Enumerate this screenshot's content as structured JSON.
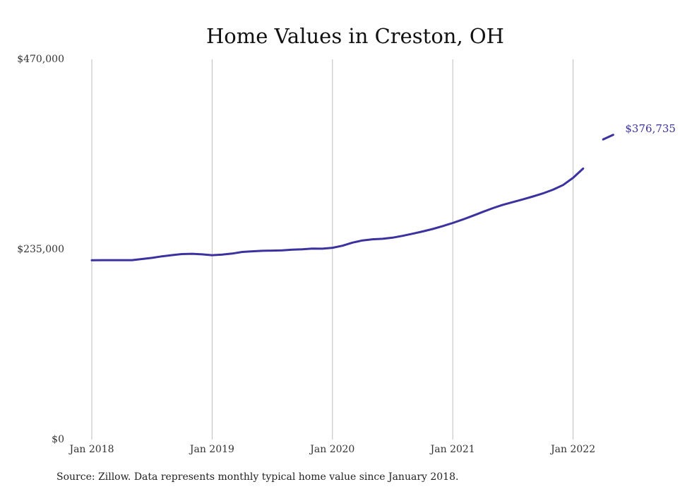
{
  "chart_data": {
    "type": "line",
    "title": "Home Values in Creston, OH",
    "xlabel": "",
    "ylabel": "",
    "ylim": [
      0,
      470000
    ],
    "y_ticks": [
      {
        "value": 0,
        "label": "$0"
      },
      {
        "value": 235000,
        "label": "$235,000"
      },
      {
        "value": 470000,
        "label": "$470,000"
      }
    ],
    "x_ticks": [
      {
        "value": 0,
        "label": "Jan 2018"
      },
      {
        "value": 12,
        "label": "Jan 2019"
      },
      {
        "value": 24,
        "label": "Jan 2020"
      },
      {
        "value": 36,
        "label": "Jan 2021"
      },
      {
        "value": 48,
        "label": "Jan 2022"
      }
    ],
    "x_unit": "months since Jan 2018",
    "xlim": [
      0,
      52.5
    ],
    "grid": {
      "vertical": true,
      "horizontal": false
    },
    "line_color": "#3b32a0",
    "series": [
      {
        "name": "",
        "x": [
          0,
          1,
          2,
          3,
          4,
          5,
          6,
          7,
          8,
          9,
          10,
          11,
          12,
          13,
          14,
          15,
          16,
          17,
          18,
          19,
          20,
          21,
          22,
          23,
          24,
          25,
          26,
          27,
          28,
          29,
          30,
          31,
          32,
          33,
          34,
          35,
          36,
          37,
          38,
          39,
          40,
          41,
          42,
          43,
          44,
          45,
          46,
          47,
          48,
          49
        ],
        "values": [
          221600,
          221800,
          221800,
          221800,
          221800,
          223200,
          224600,
          226500,
          228000,
          229300,
          229700,
          229000,
          227900,
          228700,
          229900,
          231900,
          232700,
          233300,
          233600,
          233900,
          234700,
          235300,
          236100,
          236000,
          237100,
          239600,
          243500,
          246200,
          247600,
          248200,
          249600,
          251900,
          254500,
          257300,
          260300,
          263900,
          267800,
          272000,
          276700,
          281500,
          286100,
          290200,
          293600,
          296900,
          300500,
          304400,
          308900,
          314700,
          323600,
          335000
        ]
      },
      {
        "name": "",
        "x": [
          51,
          52
        ],
        "values": [
          371000,
          376735
        ]
      }
    ],
    "annotations": [
      {
        "text": "$376,735",
        "x": 52,
        "y": 376735
      }
    ]
  },
  "source": "Source: Zillow. Data represents monthly typical home value since January 2018."
}
